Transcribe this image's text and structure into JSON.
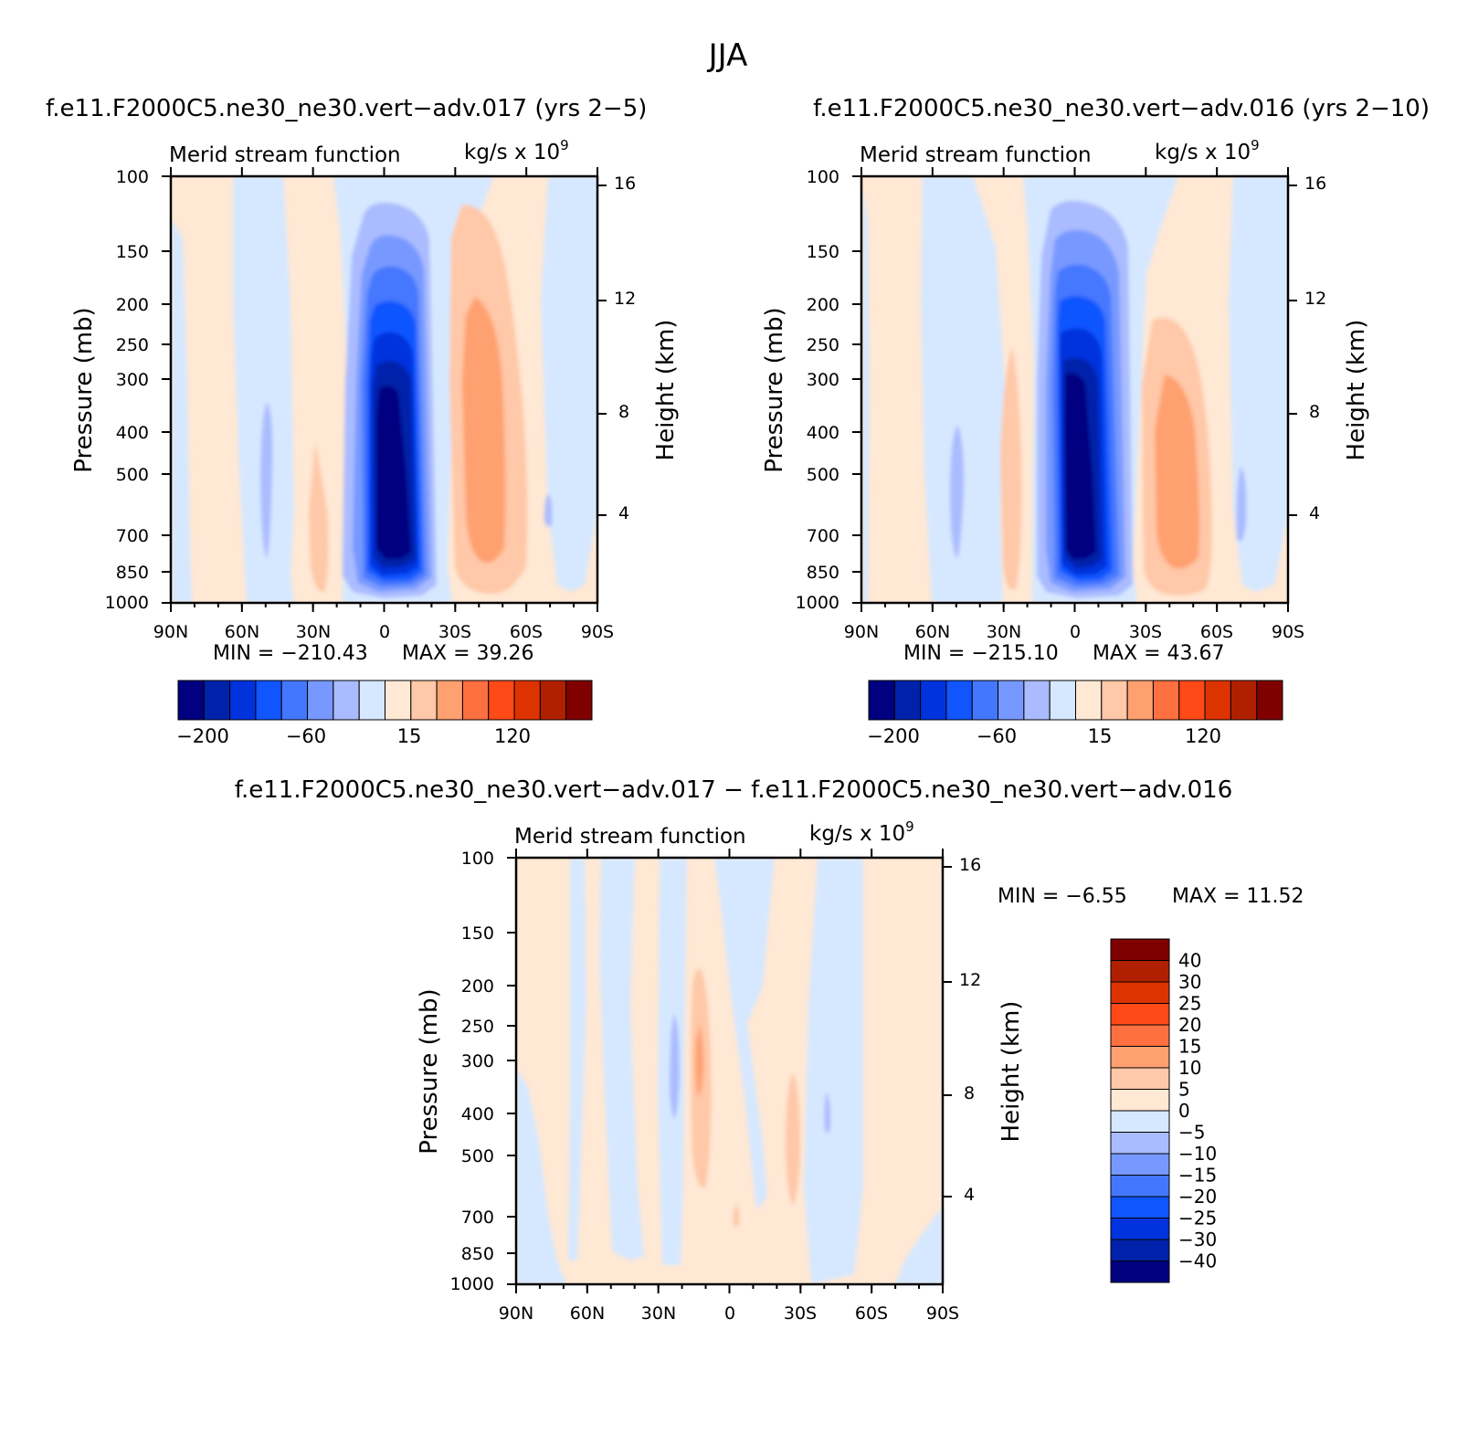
{
  "page_title": "JJA",
  "colors": {
    "full_scale": [
      "#000080",
      "#0022aa",
      "#0033dd",
      "#1155ff",
      "#4477ff",
      "#7799ff",
      "#aabbff",
      "#d6e8ff",
      "#ffe8d4",
      "#ffc8a8",
      "#ffa070",
      "#ff7040",
      "#ff4a18",
      "#dd3300",
      "#b02000",
      "#800000"
    ],
    "diff_scale": [
      "#800000",
      "#b02000",
      "#dd3300",
      "#ff4a18",
      "#ff7040",
      "#ffa070",
      "#ffc8a8",
      "#ffe8d4",
      "#d6e8ff",
      "#aabbff",
      "#7799ff",
      "#4477ff",
      "#1155ff",
      "#0033dd",
      "#0022aa",
      "#000080"
    ]
  },
  "chart_data": [
    {
      "type": "heatmap",
      "title": "f.e11.F2000C5.ne30_ne30.vert−adv.017 (yrs 2−5)",
      "subtitle_left": "Merid stream function",
      "units": "kg/s x 10",
      "units_exp": "9",
      "ylabel": "Pressure (mb)",
      "y2label": "Height (km)",
      "x_ticks": [
        "90N",
        "60N",
        "30N",
        "0",
        "30S",
        "60S",
        "90S"
      ],
      "y_ticks": [
        "100",
        "150",
        "200",
        "250",
        "300",
        "400",
        "500",
        "700",
        "850",
        "1000"
      ],
      "y2_ticks": [
        "16",
        "12",
        "8",
        "4"
      ],
      "ylim": [
        1000,
        100
      ],
      "min_label": "MIN = −210.43",
      "max_label": "MAX = 39.26",
      "min": -210.43,
      "max": 39.26,
      "colorbar_labels": [
        "−200",
        "−60",
        "15",
        "120"
      ]
    },
    {
      "type": "heatmap",
      "title": "f.e11.F2000C5.ne30_ne30.vert−adv.016 (yrs 2−10)",
      "subtitle_left": "Merid stream function",
      "units": "kg/s x 10",
      "units_exp": "9",
      "ylabel": "Pressure (mb)",
      "y2label": "Height (km)",
      "x_ticks": [
        "90N",
        "60N",
        "30N",
        "0",
        "30S",
        "60S",
        "90S"
      ],
      "y_ticks": [
        "100",
        "150",
        "200",
        "250",
        "300",
        "400",
        "500",
        "700",
        "850",
        "1000"
      ],
      "y2_ticks": [
        "16",
        "12",
        "8",
        "4"
      ],
      "ylim": [
        1000,
        100
      ],
      "min_label": "MIN = −215.10",
      "max_label": "MAX = 43.67",
      "min": -215.1,
      "max": 43.67,
      "colorbar_labels": [
        "−200",
        "−60",
        "15",
        "120"
      ]
    },
    {
      "type": "heatmap",
      "title": "f.e11.F2000C5.ne30_ne30.vert−adv.017 − f.e11.F2000C5.ne30_ne30.vert−adv.016",
      "subtitle_left": "Merid stream function",
      "units": "kg/s x 10",
      "units_exp": "9",
      "ylabel": "Pressure (mb)",
      "y2label": "Height (km)",
      "x_ticks": [
        "90N",
        "60N",
        "30N",
        "0",
        "30S",
        "60S",
        "90S"
      ],
      "y_ticks": [
        "100",
        "150",
        "200",
        "250",
        "300",
        "400",
        "500",
        "700",
        "850",
        "1000"
      ],
      "y2_ticks": [
        "16",
        "12",
        "8",
        "4"
      ],
      "ylim": [
        1000,
        100
      ],
      "min_label": "MIN = −6.55",
      "max_label": "MAX = 11.52",
      "min": -6.55,
      "max": 11.52,
      "colorbar_labels": [
        "40",
        "30",
        "25",
        "20",
        "15",
        "10",
        "5",
        "0",
        "−5",
        "−10",
        "−15",
        "−20",
        "−25",
        "−30",
        "−40"
      ]
    }
  ]
}
